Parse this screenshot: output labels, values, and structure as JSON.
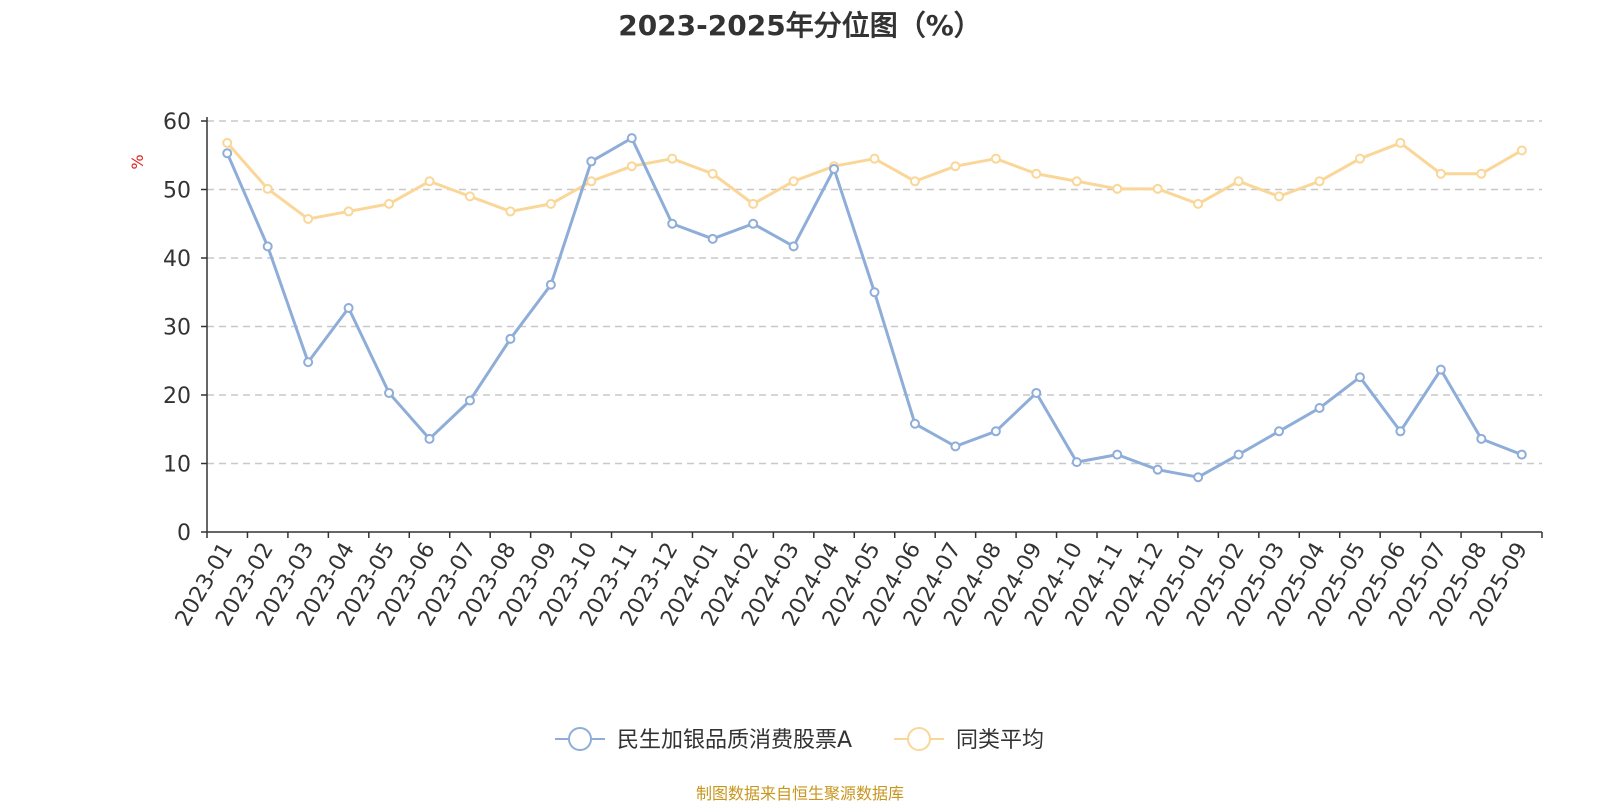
{
  "chart_data": {
    "type": "line",
    "title": "2023-2025年分位图（%）",
    "ylabel": "%",
    "xlabel": "",
    "ylim": [
      0,
      60
    ],
    "yticks": [
      0,
      10,
      20,
      30,
      40,
      50,
      60
    ],
    "grid": true,
    "legend_position": "bottom-center",
    "categories": [
      "2023-01",
      "2023-02",
      "2023-03",
      "2023-04",
      "2023-05",
      "2023-06",
      "2023-07",
      "2023-08",
      "2023-09",
      "2023-10",
      "2023-11",
      "2023-12",
      "2024-01",
      "2024-02",
      "2024-03",
      "2024-04",
      "2024-05",
      "2024-06",
      "2024-07",
      "2024-08",
      "2024-09",
      "2024-10",
      "2024-11",
      "2024-12",
      "2025-01",
      "2025-02",
      "2025-03",
      "2025-04",
      "2025-05",
      "2025-06",
      "2025-07",
      "2025-08",
      "2025-09"
    ],
    "series": [
      {
        "name": "民生加银品质消费股票A",
        "color": "#8eadd8",
        "values": [
          55.3,
          41.7,
          24.8,
          32.7,
          20.3,
          13.6,
          19.2,
          28.2,
          36.1,
          54.1,
          57.5,
          45.0,
          42.8,
          45.0,
          41.7,
          53.0,
          35.0,
          15.8,
          12.5,
          14.7,
          20.3,
          10.2,
          11.3,
          9.1,
          8.0,
          11.3,
          14.7,
          18.1,
          22.6,
          14.7,
          23.7,
          13.6,
          11.3
        ]
      },
      {
        "name": "同类平均",
        "color": "#fad798",
        "values": [
          56.8,
          50.1,
          45.7,
          46.8,
          47.9,
          51.2,
          49.0,
          46.8,
          47.9,
          51.2,
          53.4,
          54.5,
          52.3,
          47.9,
          51.2,
          53.4,
          54.5,
          51.2,
          53.4,
          54.5,
          52.3,
          51.2,
          50.1,
          50.1,
          47.9,
          51.2,
          49.0,
          51.2,
          54.5,
          56.8,
          52.3,
          52.3,
          55.7
        ]
      }
    ]
  },
  "footer": {
    "source": "制图数据来自恒生聚源数据库"
  }
}
